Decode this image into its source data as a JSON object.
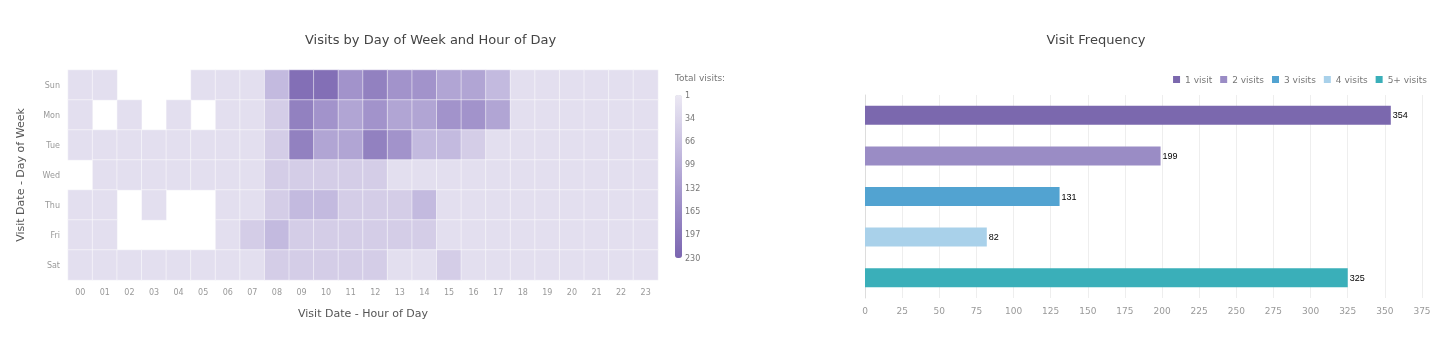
{
  "chart_data": [
    {
      "type": "heatmap",
      "title": "Visits by Day of Week and Hour of Day",
      "xlabel": "Visit Date - Hour of Day",
      "ylabel": "Visit Date - Day of Week",
      "clabel": "Total visits:",
      "categories": [
        "00",
        "01",
        "02",
        "03",
        "04",
        "05",
        "06",
        "07",
        "08",
        "09",
        "10",
        "11",
        "12",
        "13",
        "14",
        "15",
        "16",
        "17",
        "18",
        "19",
        "20",
        "21",
        "22",
        "23"
      ],
      "y_categories": [
        "Sun",
        "Mon",
        "Tue",
        "Wed",
        "Thu",
        "Fri",
        "Sat"
      ],
      "cells": [
        [
          17,
          17,
          null,
          null,
          null,
          17,
          17,
          17,
          82,
          213,
          213,
          148,
          181,
          148,
          148,
          115,
          115,
          82,
          17,
          17,
          17,
          17,
          17,
          17
        ],
        [
          17,
          null,
          17,
          null,
          17,
          null,
          17,
          17,
          50,
          181,
          148,
          115,
          148,
          115,
          115,
          148,
          148,
          115,
          17,
          17,
          17,
          17,
          17,
          17
        ],
        [
          17,
          17,
          17,
          17,
          17,
          17,
          17,
          17,
          50,
          181,
          115,
          115,
          181,
          148,
          82,
          82,
          50,
          17,
          17,
          17,
          17,
          17,
          17,
          17
        ],
        [
          null,
          17,
          17,
          17,
          17,
          17,
          17,
          17,
          50,
          50,
          50,
          50,
          50,
          17,
          17,
          17,
          17,
          17,
          17,
          17,
          17,
          17,
          17,
          17
        ],
        [
          17,
          17,
          null,
          17,
          null,
          null,
          17,
          17,
          50,
          82,
          82,
          50,
          50,
          50,
          82,
          17,
          17,
          17,
          17,
          17,
          17,
          17,
          17,
          17
        ],
        [
          17,
          17,
          null,
          null,
          null,
          null,
          17,
          50,
          82,
          50,
          50,
          50,
          50,
          50,
          50,
          17,
          17,
          17,
          17,
          17,
          17,
          17,
          17,
          17
        ],
        [
          17,
          17,
          17,
          17,
          17,
          17,
          17,
          17,
          50,
          50,
          50,
          50,
          50,
          17,
          17,
          50,
          17,
          17,
          17,
          17,
          17,
          17,
          17,
          17
        ]
      ],
      "clim": [
        1,
        230
      ],
      "cticks": [
        1,
        34,
        66,
        99,
        132,
        165,
        197,
        230
      ]
    },
    {
      "type": "bar",
      "title": "Visit Frequency",
      "orientation": "horizontal",
      "categories": [
        null,
        null,
        null,
        null,
        null
      ],
      "series": [
        {
          "name": "1 visit",
          "color": "#7b68ae",
          "values": [
            354,
            null,
            null,
            null,
            null
          ]
        },
        {
          "name": "2 visits",
          "color": "#9a8cc5",
          "values": [
            null,
            199,
            null,
            null,
            null
          ]
        },
        {
          "name": "3 visits",
          "color": "#52a3d1",
          "values": [
            null,
            null,
            131,
            null,
            null
          ]
        },
        {
          "name": "4 visits",
          "color": "#a9d1ea",
          "values": [
            null,
            null,
            null,
            82,
            null
          ]
        },
        {
          "name": "5+ visits",
          "color": "#3aafb9",
          "values": [
            null,
            null,
            null,
            null,
            325
          ]
        }
      ],
      "xlim": [
        0,
        375
      ],
      "xticks": [
        0,
        25,
        50,
        75,
        100,
        125,
        150,
        175,
        200,
        225,
        250,
        275,
        300,
        325,
        350,
        375
      ],
      "grid": "x",
      "legend": "top right",
      "data_labels": true
    }
  ]
}
